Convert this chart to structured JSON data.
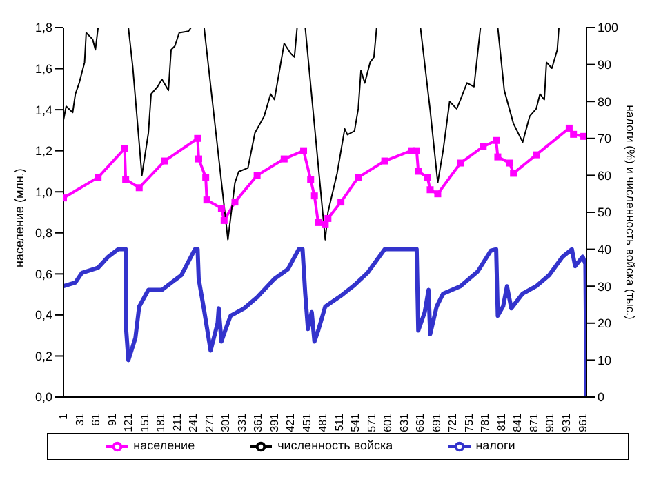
{
  "chart_data": {
    "type": "line",
    "ylabel": "население (млн.)",
    "y2label": "налоги (%) и численность войска (тыс.)",
    "xlim": [
      1,
      968
    ],
    "xticks": [
      1,
      31,
      61,
      91,
      121,
      151,
      181,
      211,
      241,
      271,
      301,
      331,
      361,
      391,
      421,
      451,
      481,
      511,
      541,
      571,
      601,
      631,
      661,
      691,
      721,
      751,
      781,
      811,
      841,
      871,
      901,
      931,
      961
    ],
    "ylim": [
      0,
      1.8
    ],
    "yticks": [
      {
        "value": 0,
        "label": "0,0"
      },
      {
        "value": 0.2,
        "label": "0,2"
      },
      {
        "value": 0.4,
        "label": "0,4"
      },
      {
        "value": 0.6,
        "label": "0,6"
      },
      {
        "value": 0.8,
        "label": "0,8"
      },
      {
        "value": 1.0,
        "label": "1,0"
      },
      {
        "value": 1.2,
        "label": "1,2"
      },
      {
        "value": 1.4,
        "label": "1,4"
      },
      {
        "value": 1.6,
        "label": "1,6"
      },
      {
        "value": 1.8,
        "label": "1,8"
      }
    ],
    "y2lim": [
      0,
      100
    ],
    "y2ticks": [
      0,
      10,
      20,
      30,
      40,
      50,
      60,
      70,
      80,
      90,
      100
    ],
    "legend": "bottom",
    "grid": false,
    "series": [
      {
        "name": "население",
        "color": "#ff00ff",
        "marker": "square",
        "x": [
          1,
          65,
          114,
          116,
          141,
          188,
          249,
          251,
          264,
          266,
          293,
          298,
          318,
          359,
          409,
          445,
          458,
          465,
          472,
          485,
          490,
          514,
          546,
          595,
          644,
          654,
          657,
          674,
          679,
          693,
          735,
          777,
          801,
          804,
          826,
          833,
          875,
          936,
          944,
          963
        ],
        "values": [
          0.97,
          1.07,
          1.21,
          1.06,
          1.02,
          1.15,
          1.26,
          1.16,
          1.07,
          0.96,
          0.92,
          0.86,
          0.95,
          1.08,
          1.16,
          1.2,
          1.06,
          0.98,
          0.85,
          0.84,
          0.87,
          0.95,
          1.07,
          1.15,
          1.2,
          1.2,
          1.1,
          1.07,
          1.01,
          0.99,
          1.14,
          1.22,
          1.25,
          1.17,
          1.14,
          1.09,
          1.18,
          1.31,
          1.28,
          1.27
        ]
      },
      {
        "name": "численность войска",
        "color": "#000000",
        "marker": "none",
        "axis": "y2",
        "x": [
          1,
          6,
          18,
          23,
          30,
          40,
          43,
          55,
          60,
          65,
          93,
          121,
          129,
          146,
          158,
          163,
          175,
          183,
          195,
          200,
          207,
          215,
          232,
          237,
          242,
          261,
          305,
          318,
          325,
          342,
          355,
          372,
          384,
          391,
          409,
          421,
          428,
          433,
          440,
          448,
          485,
          490,
          507,
          521,
          526,
          539,
          546,
          551,
          558,
          568,
          575,
          580,
          620,
          661,
          679,
          693,
          703,
          715,
          728,
          735,
          747,
          760,
          772,
          790,
          804,
          816,
          833,
          850,
          863,
          875,
          882,
          890,
          894,
          904,
          914,
          917
        ],
        "values": [
          75,
          78.7,
          77,
          82,
          85,
          90.6,
          98.6,
          96.8,
          94,
          100,
          null,
          100,
          89.5,
          60,
          71.5,
          82,
          84,
          86,
          83,
          94,
          95,
          98.6,
          99,
          100,
          null,
          100,
          42.6,
          58,
          61,
          62,
          71.5,
          76,
          82,
          80.5,
          95.7,
          93,
          92,
          100,
          null,
          100,
          42.6,
          50,
          60.6,
          72.6,
          71,
          72,
          78,
          88.4,
          85,
          90.6,
          92,
          100,
          null,
          100,
          77.6,
          58,
          66.8,
          80,
          78,
          80.5,
          85,
          84,
          100,
          null,
          100,
          83,
          74,
          69,
          76,
          78,
          82,
          80.5,
          90.6,
          89,
          94,
          100
        ]
      },
      {
        "name": "налоги",
        "color": "#3333cc",
        "marker": "none",
        "axis": "y2",
        "x": [
          1,
          23,
          35,
          65,
          84,
          102,
          116,
          117,
          121,
          134,
          141,
          158,
          183,
          219,
          244,
          249,
          251,
          261,
          273,
          286,
          288,
          293,
          300,
          310,
          335,
          359,
          391,
          416,
          436,
          443,
          448,
          453,
          460,
          465,
          472,
          485,
          514,
          539,
          563,
          595,
          654,
          657,
          669,
          676,
          679,
          691,
          703,
          735,
          767,
          791,
          801,
          804,
          814,
          821,
          829,
          850,
          875,
          899,
          924,
          941,
          947,
          961,
          966,
          968
        ],
        "values": [
          30,
          31,
          33.6,
          35,
          38,
          40,
          40,
          18,
          10,
          16,
          24.5,
          29,
          29,
          33,
          40,
          40,
          32,
          23.5,
          12.6,
          20,
          24,
          15,
          18,
          22,
          24,
          27,
          32,
          34.6,
          40,
          40,
          28,
          18.4,
          23,
          15,
          18,
          24.5,
          27.4,
          30.3,
          33.6,
          40,
          40,
          18,
          23,
          29,
          17,
          24.5,
          28,
          30,
          34,
          39.6,
          40,
          22,
          24.6,
          30,
          24,
          28,
          30,
          33,
          38,
          40,
          35.4,
          38,
          36,
          0
        ]
      }
    ]
  }
}
